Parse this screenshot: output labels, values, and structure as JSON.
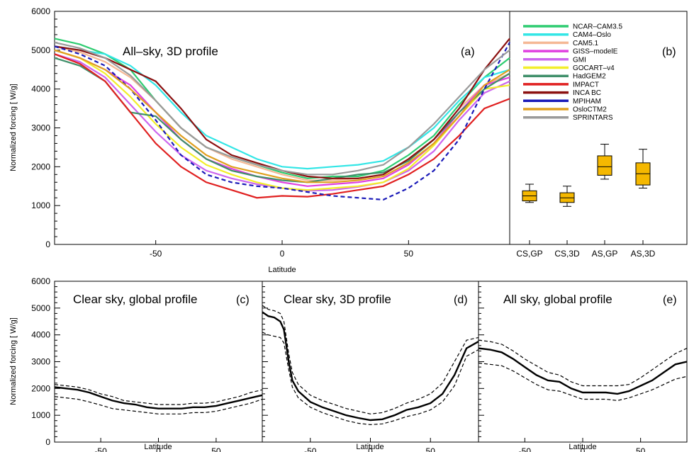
{
  "chart_data": [
    {
      "id": "a",
      "type": "line",
      "panel_label": "(a)",
      "title": "All–sky, 3D profile",
      "xlabel": "Latitude",
      "ylabel": "Normalized forcing [ W/g]",
      "xlim": [
        -90,
        90
      ],
      "ylim": [
        0,
        6000
      ],
      "xticks": [
        -50,
        0,
        50
      ],
      "yticks": [
        0,
        1000,
        2000,
        3000,
        4000,
        5000,
        6000
      ],
      "x": [
        -90,
        -80,
        -70,
        -60,
        -50,
        -40,
        -30,
        -20,
        -10,
        0,
        10,
        20,
        30,
        40,
        50,
        60,
        70,
        80,
        90
      ],
      "series": [
        {
          "name": "NCAR–CAM3.5",
          "color": "#2ecc71",
          "dash": false,
          "values": [
            5300,
            5150,
            4900,
            4500,
            3700,
            3000,
            2500,
            2250,
            2050,
            1850,
            1700,
            1750,
            1750,
            1900,
            2300,
            2800,
            3600,
            4300,
            4800
          ]
        },
        {
          "name": "CAM4–Oslo",
          "color": "#33e6e6",
          "dash": false,
          "values": [
            5100,
            5000,
            4900,
            4600,
            4100,
            3400,
            2800,
            2500,
            2200,
            2000,
            1950,
            2000,
            2050,
            2150,
            2500,
            3000,
            3700,
            4300,
            4500
          ]
        },
        {
          "name": "CAM5.1",
          "color": "#f5b895",
          "dash": false,
          "values": [
            5100,
            4950,
            4700,
            4300,
            3700,
            3000,
            2500,
            2200,
            2000,
            1800,
            1650,
            1650,
            1700,
            1800,
            2200,
            2700,
            3500,
            4100,
            4400
          ]
        },
        {
          "name": "GISS–modelE",
          "color": "#e040e0",
          "dash": false,
          "values": [
            5000,
            4800,
            4500,
            4100,
            3400,
            2700,
            2200,
            1950,
            1750,
            1600,
            1500,
            1550,
            1600,
            1700,
            2050,
            2600,
            3400,
            4100,
            4300
          ]
        },
        {
          "name": "GMI",
          "color": "#cc66ee",
          "dash": false,
          "values": [
            4900,
            4700,
            4300,
            3600,
            2900,
            2300,
            1900,
            1700,
            1550,
            1450,
            1380,
            1400,
            1480,
            1600,
            1900,
            2400,
            3200,
            3900,
            4200
          ]
        },
        {
          "name": "GOCART–v4",
          "color": "#f2ee2a",
          "dash": false,
          "values": [
            5000,
            4800,
            4400,
            3800,
            3100,
            2500,
            2050,
            1800,
            1600,
            1450,
            1400,
            1450,
            1500,
            1600,
            1950,
            2550,
            3300,
            4000,
            4100
          ]
        },
        {
          "name": "HadGEM2",
          "color": "#3f8f6a",
          "dash": false,
          "values": [
            4800,
            4600,
            4200,
            3400,
            3300,
            2700,
            2200,
            1900,
            1750,
            1650,
            1600,
            1700,
            1800,
            1850,
            2150,
            2700,
            3400,
            4000,
            4400
          ]
        },
        {
          "name": "IMPACT",
          "color": "#e02020",
          "dash": false,
          "values": [
            4900,
            4650,
            4200,
            3400,
            2600,
            2000,
            1600,
            1400,
            1200,
            1250,
            1230,
            1300,
            1400,
            1500,
            1800,
            2200,
            2800,
            3500,
            3750
          ]
        },
        {
          "name": "INCA BC",
          "color": "#8b1010",
          "dash": false,
          "values": [
            5100,
            5000,
            4800,
            4500,
            4200,
            3500,
            2700,
            2300,
            2100,
            1900,
            1750,
            1700,
            1700,
            1800,
            2200,
            2700,
            3500,
            4500,
            5300
          ]
        },
        {
          "name": "MPIHAM",
          "color": "#1a1ab8",
          "dash": true,
          "values": [
            5100,
            4900,
            4600,
            4000,
            3200,
            2300,
            1800,
            1600,
            1500,
            1450,
            1350,
            1250,
            1200,
            1150,
            1450,
            1900,
            2700,
            4000,
            5200
          ]
        },
        {
          "name": "OsloCTM2",
          "color": "#e0a020",
          "dash": false,
          "values": [
            5000,
            4800,
            4500,
            4000,
            3400,
            2800,
            2300,
            2000,
            1850,
            1700,
            1600,
            1600,
            1650,
            1750,
            2100,
            2600,
            3300,
            4100,
            4500
          ]
        },
        {
          "name": "SPRINTARS",
          "color": "#9a9a9a",
          "dash": false,
          "values": [
            5200,
            5050,
            4800,
            4350,
            3700,
            3000,
            2500,
            2250,
            2050,
            1900,
            1800,
            1800,
            1900,
            2050,
            2500,
            3100,
            3800,
            4500,
            5000
          ]
        }
      ]
    },
    {
      "id": "b",
      "type": "box",
      "panel_label": "(b)",
      "ylim": [
        0,
        6000
      ],
      "color": "#f5b800",
      "categories": [
        "CS,GP",
        "CS,3D",
        "AS,GP",
        "AS,3D"
      ],
      "boxes": [
        {
          "min": 1080,
          "q1": 1120,
          "median": 1250,
          "q3": 1380,
          "max": 1550
        },
        {
          "min": 980,
          "q1": 1080,
          "median": 1200,
          "q3": 1330,
          "max": 1500
        },
        {
          "min": 1680,
          "q1": 1780,
          "median": 2000,
          "q3": 2280,
          "max": 2580
        },
        {
          "min": 1450,
          "q1": 1530,
          "median": 1820,
          "q3": 2100,
          "max": 2450
        }
      ]
    },
    {
      "id": "c",
      "type": "line",
      "panel_label": "(c)",
      "title": "Clear sky, global profile",
      "xlabel": "Latitude",
      "ylabel": "Normalized forcing [ W/g]",
      "xlim": [
        -90,
        90
      ],
      "ylim": [
        0,
        6000
      ],
      "xticks": [
        -50,
        0,
        50
      ],
      "yticks": [
        0,
        1000,
        2000,
        3000,
        4000,
        5000,
        6000
      ],
      "x": [
        -90,
        -80,
        -70,
        -60,
        -50,
        -40,
        -30,
        -20,
        -10,
        0,
        10,
        20,
        30,
        40,
        50,
        60,
        70,
        80,
        90
      ],
      "mean": [
        2050,
        2000,
        1950,
        1850,
        1700,
        1550,
        1450,
        1400,
        1300,
        1250,
        1250,
        1250,
        1300,
        1300,
        1350,
        1450,
        1550,
        1650,
        1750
      ],
      "upper": [
        2150,
        2100,
        2050,
        1950,
        1800,
        1700,
        1550,
        1500,
        1450,
        1400,
        1400,
        1400,
        1450,
        1450,
        1500,
        1600,
        1700,
        1850,
        1950
      ],
      "lower": [
        1700,
        1650,
        1600,
        1500,
        1380,
        1250,
        1200,
        1150,
        1100,
        1050,
        1050,
        1050,
        1100,
        1100,
        1150,
        1250,
        1350,
        1450,
        1600
      ]
    },
    {
      "id": "d",
      "type": "line",
      "panel_label": "(d)",
      "title": "Clear sky, 3D profile",
      "xlim": [
        -90,
        90
      ],
      "ylim": [
        0,
        6000
      ],
      "xlabel": "Latitude",
      "xticks": [
        -50,
        0,
        50
      ],
      "x": [
        -90,
        -85,
        -80,
        -75,
        -72,
        -68,
        -65,
        -60,
        -50,
        -40,
        -30,
        -20,
        -10,
        0,
        10,
        20,
        30,
        40,
        50,
        60,
        70,
        80,
        90
      ],
      "mean": [
        4850,
        4700,
        4650,
        4500,
        4200,
        3000,
        2300,
        1900,
        1500,
        1300,
        1150,
        1000,
        900,
        820,
        850,
        1000,
        1200,
        1300,
        1450,
        1800,
        2500,
        3500,
        3750
      ],
      "upper": [
        5100,
        4950,
        4900,
        4800,
        4500,
        3300,
        2600,
        2150,
        1750,
        1550,
        1400,
        1250,
        1150,
        1050,
        1100,
        1250,
        1450,
        1600,
        1800,
        2200,
        3000,
        3800,
        3900
      ],
      "lower": [
        4100,
        4000,
        3950,
        3900,
        3700,
        2700,
        2050,
        1650,
        1300,
        1100,
        950,
        800,
        700,
        650,
        680,
        800,
        950,
        1050,
        1200,
        1500,
        2100,
        3200,
        3450
      ]
    },
    {
      "id": "e",
      "type": "line",
      "panel_label": "(e)",
      "title": "All sky, global profile",
      "xlim": [
        -90,
        90
      ],
      "ylim": [
        0,
        6000
      ],
      "xlabel": "Latitude",
      "xticks": [
        -50,
        0,
        50
      ],
      "x": [
        -90,
        -80,
        -70,
        -60,
        -50,
        -40,
        -30,
        -20,
        -10,
        0,
        10,
        20,
        30,
        40,
        50,
        60,
        70,
        80,
        90
      ],
      "mean": [
        3500,
        3450,
        3350,
        3100,
        2800,
        2500,
        2300,
        2250,
        2000,
        1850,
        1850,
        1850,
        1800,
        1900,
        2100,
        2300,
        2600,
        2900,
        3000
      ],
      "upper": [
        3800,
        3750,
        3650,
        3400,
        3100,
        2850,
        2600,
        2500,
        2250,
        2100,
        2100,
        2100,
        2100,
        2150,
        2400,
        2700,
        3000,
        3300,
        3500
      ],
      "lower": [
        2950,
        2900,
        2850,
        2650,
        2400,
        2150,
        1950,
        1900,
        1750,
        1600,
        1600,
        1600,
        1550,
        1650,
        1800,
        1950,
        2150,
        2350,
        2450
      ]
    }
  ]
}
